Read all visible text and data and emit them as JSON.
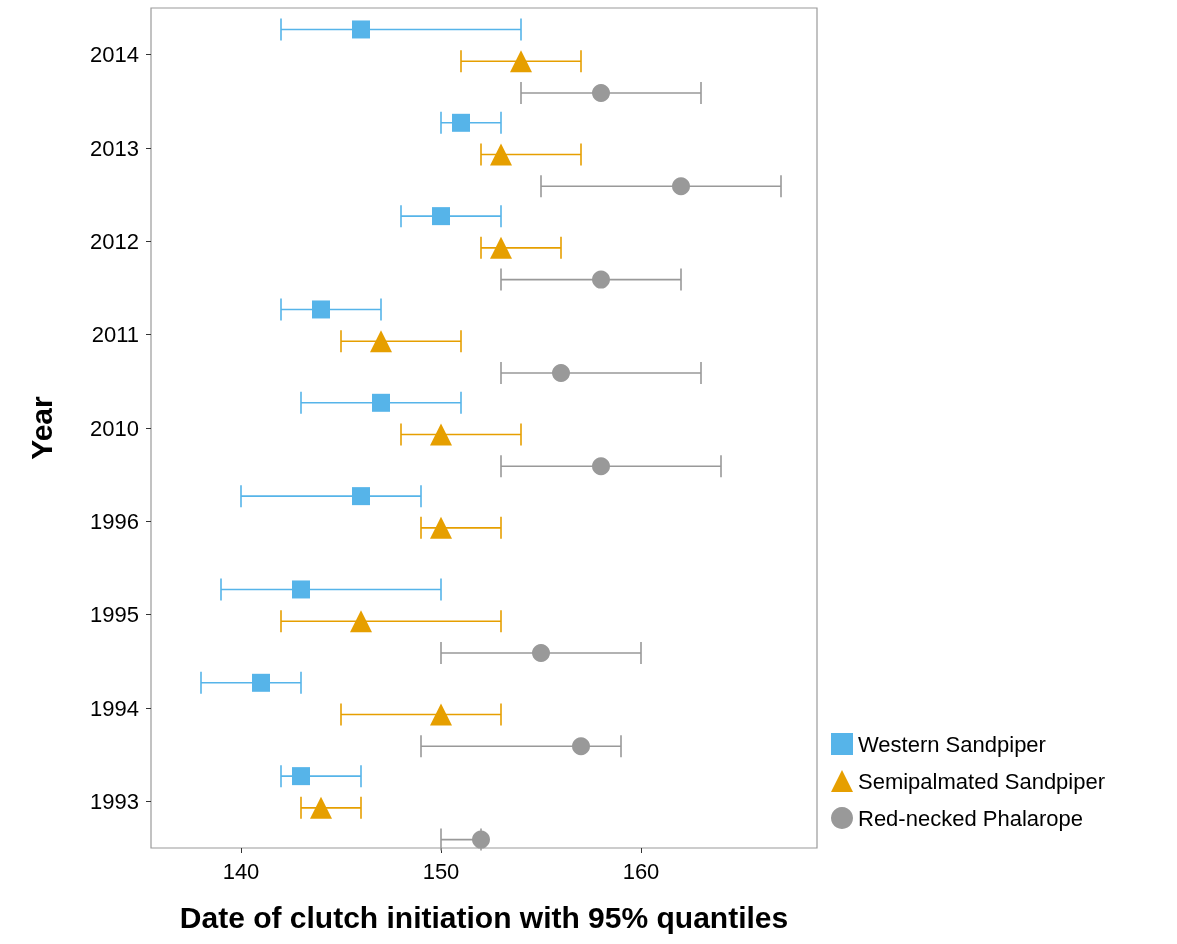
{
  "chart_data": {
    "type": "scatter",
    "orientation": "horizontal",
    "xlabel": "Date of clutch initiation with 95% quantiles",
    "ylabel": "Year",
    "categories": [
      "2014",
      "2013",
      "2012",
      "2011",
      "2010",
      "1996",
      "1995",
      "1994",
      "1993"
    ],
    "xlim": [
      135.5,
      168.8
    ],
    "xticks": [
      140,
      150,
      160
    ],
    "grid": false,
    "legend": "bottom right",
    "series": [
      {
        "name": "Western Sandpiper",
        "color": "#56b4e9",
        "marker": "square",
        "values": [
          146,
          151,
          150,
          144,
          147,
          146,
          143,
          141,
          143
        ],
        "errors": [
          [
            142,
            154
          ],
          [
            150,
            153
          ],
          [
            148,
            153
          ],
          [
            142,
            147
          ],
          [
            143,
            151
          ],
          [
            140,
            149
          ],
          [
            139,
            150
          ],
          [
            138,
            143
          ],
          [
            142,
            146
          ]
        ]
      },
      {
        "name": "Semipalmated Sandpiper",
        "color": "#e69f00",
        "marker": "triangle",
        "values": [
          154,
          153,
          153,
          147,
          150,
          150,
          146,
          150,
          144
        ],
        "errors": [
          [
            151,
            157
          ],
          [
            152,
            157
          ],
          [
            152,
            156
          ],
          [
            145,
            151
          ],
          [
            148,
            154
          ],
          [
            149,
            153
          ],
          [
            142,
            153
          ],
          [
            145,
            153
          ],
          [
            143,
            146
          ]
        ]
      },
      {
        "name": "Red-necked Phalarope",
        "color": "#999999",
        "marker": "circle",
        "values": [
          158,
          162,
          158,
          156,
          158,
          null,
          155,
          157,
          152
        ],
        "errors": [
          [
            154,
            163
          ],
          [
            155,
            167
          ],
          [
            153,
            162
          ],
          [
            153,
            163
          ],
          [
            153,
            164
          ],
          null,
          [
            150,
            160
          ],
          [
            149,
            159
          ],
          [
            150,
            152
          ]
        ]
      }
    ]
  }
}
